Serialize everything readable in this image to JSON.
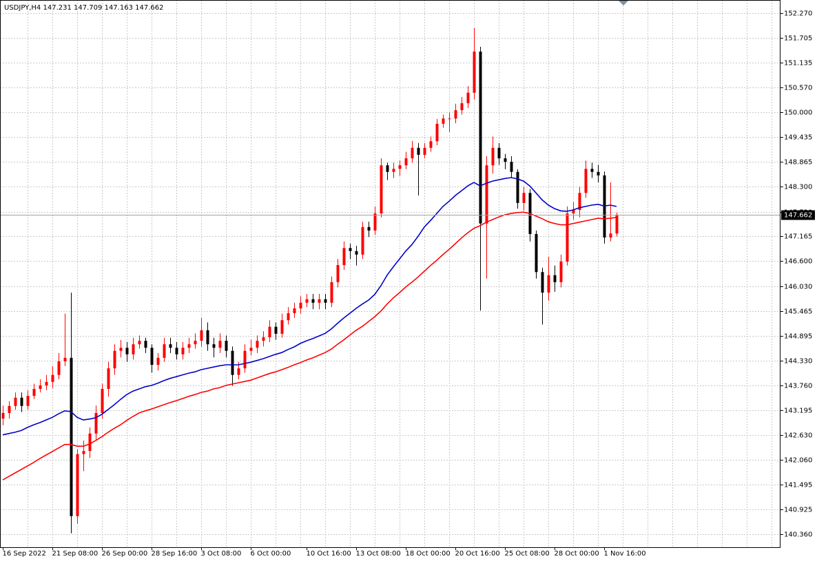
{
  "chart_data": {
    "type": "candlestick",
    "title": "USDJPY,H4",
    "categories": [
      "16 Sep 2022",
      null,
      null,
      null,
      null,
      null,
      null,
      null,
      "21 Sep 08:00",
      null,
      null,
      null,
      null,
      null,
      null,
      null,
      "26 Sep 00:00",
      null,
      null,
      null,
      null,
      null,
      null,
      null,
      "28 Sep 16:00",
      null,
      null,
      null,
      null,
      null,
      null,
      null,
      "3 Oct 08:00",
      null,
      null,
      null,
      null,
      null,
      null,
      null,
      "6 Oct 00:00",
      null,
      null,
      null,
      null,
      null,
      null,
      null,
      null,
      "10 Oct 16:00",
      null,
      null,
      null,
      null,
      null,
      null,
      null,
      "13 Oct 08:00",
      null,
      null,
      null,
      null,
      null,
      null,
      null,
      "18 Oct 00:00",
      null,
      null,
      null,
      null,
      null,
      null,
      null,
      "20 Oct 16:00",
      null,
      null,
      null,
      null,
      null,
      null,
      null,
      "25 Oct 08:00",
      null,
      null,
      null,
      null,
      null,
      null,
      null,
      "28 Oct 00:00",
      null,
      null,
      null,
      null,
      null,
      null,
      null,
      "1 Nov 16:00",
      null,
      null
    ],
    "open": [
      143.0,
      143.13,
      143.29,
      143.48,
      143.29,
      143.52,
      143.68,
      143.76,
      143.84,
      144.0,
      144.31,
      144.39,
      140.77,
      142.19,
      142.26,
      142.66,
      143.13,
      143.68,
      144.15,
      144.55,
      144.62,
      144.47,
      144.7,
      144.78,
      144.62,
      144.23,
      144.39,
      144.7,
      144.62,
      144.47,
      144.62,
      144.7,
      144.78,
      145.02,
      144.7,
      144.62,
      144.78,
      144.55,
      144.0,
      144.15,
      144.55,
      144.62,
      144.78,
      144.86,
      145.1,
      144.94,
      145.25,
      145.41,
      145.52,
      145.65,
      145.73,
      145.65,
      145.73,
      145.65,
      146.12,
      146.51,
      146.9,
      146.83,
      146.75,
      147.38,
      147.3,
      147.69,
      148.79,
      148.64,
      148.71,
      148.79,
      148.95,
      149.19,
      149.03,
      149.19,
      149.34,
      149.74,
      149.86,
      149.86,
      150.05,
      150.21,
      150.45,
      151.39,
      147.46,
      148.79,
      149.19,
      148.95,
      148.87,
      148.64,
      147.93,
      148.16,
      147.22,
      146.35,
      145.88,
      146.28,
      146.12,
      146.59,
      147.69,
      147.77,
      148.16,
      148.71,
      148.64,
      148.56,
      147.14,
      147.231
    ],
    "high": [
      143.3,
      143.4,
      143.6,
      143.6,
      143.65,
      143.8,
      143.9,
      144.0,
      144.2,
      144.5,
      145.4,
      145.88,
      142.3,
      142.5,
      142.8,
      143.3,
      143.8,
      144.3,
      144.7,
      144.8,
      144.75,
      144.85,
      144.9,
      144.85,
      144.7,
      144.5,
      144.85,
      144.85,
      144.75,
      144.75,
      144.85,
      144.95,
      145.3,
      145.2,
      144.85,
      144.95,
      144.9,
      144.65,
      144.3,
      144.7,
      144.8,
      144.9,
      145.0,
      145.25,
      145.2,
      145.4,
      145.55,
      145.65,
      145.8,
      145.85,
      145.85,
      145.85,
      145.85,
      146.25,
      146.65,
      147.05,
      147.0,
      146.95,
      147.5,
      147.5,
      147.85,
      148.95,
      148.85,
      148.85,
      148.9,
      149.1,
      149.35,
      149.3,
      149.3,
      149.45,
      149.85,
      149.95,
      150.0,
      150.2,
      150.35,
      150.6,
      151.93,
      151.5,
      149.0,
      149.45,
      149.3,
      149.05,
      149.0,
      148.7,
      148.3,
      148.25,
      147.3,
      146.45,
      146.7,
      146.5,
      146.75,
      147.85,
      147.95,
      148.3,
      148.9,
      148.85,
      148.8,
      148.65,
      148.4,
      147.709
    ],
    "low": [
      142.85,
      143.0,
      143.2,
      143.15,
      143.2,
      143.45,
      143.6,
      143.65,
      143.7,
      143.9,
      144.2,
      140.38,
      140.6,
      141.8,
      142.1,
      142.5,
      143.0,
      143.5,
      144.0,
      144.4,
      144.3,
      144.35,
      144.6,
      144.5,
      144.05,
      144.1,
      144.3,
      144.5,
      144.35,
      144.35,
      144.5,
      144.6,
      144.65,
      144.55,
      144.4,
      144.5,
      144.4,
      143.75,
      143.9,
      144.05,
      144.45,
      144.5,
      144.65,
      144.75,
      144.8,
      144.85,
      145.15,
      145.3,
      145.4,
      145.55,
      145.5,
      145.5,
      145.5,
      145.55,
      146.0,
      146.4,
      146.65,
      146.5,
      146.65,
      147.15,
      147.2,
      147.6,
      148.45,
      148.5,
      148.55,
      148.7,
      148.85,
      148.1,
      148.95,
      149.1,
      149.25,
      149.65,
      149.55,
      149.75,
      149.95,
      150.1,
      150.3,
      145.47,
      146.2,
      148.6,
      148.8,
      148.7,
      148.5,
      147.8,
      147.75,
      147.05,
      146.2,
      145.15,
      145.7,
      145.9,
      146.0,
      146.5,
      147.55,
      147.6,
      148.05,
      148.5,
      148.4,
      147.0,
      147.05,
      147.163
    ],
    "close": [
      143.13,
      143.29,
      143.48,
      143.29,
      143.52,
      143.68,
      143.76,
      143.84,
      144.0,
      144.31,
      144.39,
      140.77,
      142.19,
      142.26,
      142.66,
      143.13,
      143.68,
      144.15,
      144.55,
      144.62,
      144.47,
      144.7,
      144.78,
      144.62,
      144.23,
      144.39,
      144.7,
      144.62,
      144.47,
      144.62,
      144.7,
      144.78,
      145.02,
      144.7,
      144.62,
      144.78,
      144.55,
      144.0,
      144.15,
      144.55,
      144.62,
      144.78,
      144.86,
      145.1,
      144.94,
      145.25,
      145.41,
      145.52,
      145.65,
      145.73,
      145.65,
      145.73,
      145.65,
      146.12,
      146.51,
      146.9,
      146.83,
      146.75,
      147.38,
      147.3,
      147.69,
      148.79,
      148.64,
      148.71,
      148.79,
      148.95,
      149.19,
      149.03,
      149.19,
      149.34,
      149.74,
      149.86,
      149.86,
      150.05,
      150.21,
      150.45,
      151.39,
      147.46,
      148.79,
      149.19,
      148.95,
      148.87,
      148.64,
      147.93,
      148.16,
      147.22,
      146.35,
      145.88,
      146.28,
      146.12,
      146.59,
      147.69,
      147.77,
      148.16,
      148.71,
      148.64,
      148.56,
      147.14,
      147.231,
      147.662
    ],
    "up_color": "#ff0000",
    "down_color": "#000000",
    "series": [
      {
        "color": "#0000c8",
        "values": [
          142.63,
          142.66,
          142.69,
          142.73,
          142.8,
          142.86,
          142.91,
          142.97,
          143.03,
          143.11,
          143.18,
          143.16,
          143.03,
          142.97,
          142.99,
          143.02,
          143.1,
          143.21,
          143.32,
          143.44,
          143.55,
          143.63,
          143.68,
          143.73,
          143.76,
          143.81,
          143.87,
          143.92,
          143.96,
          144.0,
          144.04,
          144.07,
          144.12,
          144.15,
          144.18,
          144.21,
          144.23,
          144.23,
          144.23,
          144.26,
          144.29,
          144.33,
          144.37,
          144.42,
          144.47,
          144.51,
          144.58,
          144.64,
          144.72,
          144.78,
          144.83,
          144.89,
          144.95,
          145.05,
          145.18,
          145.3,
          145.41,
          145.52,
          145.62,
          145.71,
          145.84,
          146.04,
          146.28,
          146.47,
          146.65,
          146.83,
          146.98,
          147.17,
          147.38,
          147.53,
          147.69,
          147.85,
          147.97,
          148.1,
          148.21,
          148.32,
          148.4,
          148.32,
          148.38,
          148.43,
          148.46,
          148.49,
          148.51,
          148.48,
          148.43,
          148.32,
          148.16,
          148.0,
          147.88,
          147.8,
          147.75,
          147.74,
          147.77,
          147.82,
          147.85,
          147.88,
          147.9,
          147.86,
          147.88,
          147.85
        ]
      },
      {
        "color": "#ff0000",
        "values": [
          141.6,
          141.68,
          141.76,
          141.84,
          141.92,
          142.0,
          142.09,
          142.17,
          142.25,
          142.33,
          142.41,
          142.41,
          142.37,
          142.37,
          142.42,
          142.5,
          142.59,
          142.69,
          142.78,
          142.86,
          142.96,
          143.05,
          143.13,
          143.18,
          143.22,
          143.27,
          143.32,
          143.37,
          143.41,
          143.46,
          143.51,
          143.55,
          143.6,
          143.63,
          143.68,
          143.71,
          143.76,
          143.79,
          143.82,
          143.85,
          143.88,
          143.93,
          143.98,
          144.03,
          144.07,
          144.12,
          144.17,
          144.23,
          144.28,
          144.34,
          144.39,
          144.45,
          144.51,
          144.59,
          144.7,
          144.8,
          144.91,
          145.02,
          145.11,
          145.22,
          145.33,
          145.46,
          145.62,
          145.76,
          145.88,
          146.01,
          146.12,
          146.24,
          146.37,
          146.5,
          146.62,
          146.75,
          146.87,
          147.0,
          147.13,
          147.25,
          147.35,
          147.41,
          147.49,
          147.55,
          147.61,
          147.66,
          147.69,
          147.71,
          147.72,
          147.69,
          147.63,
          147.57,
          147.5,
          147.46,
          147.43,
          147.43,
          147.46,
          147.49,
          147.52,
          147.55,
          147.58,
          147.57,
          147.58,
          147.6
        ]
      }
    ],
    "ylim": [
      140.061,
      152.569
    ],
    "yticks": [
      {
        "value": 152.27,
        "label": "152.270"
      },
      {
        "value": 151.705,
        "label": "151.705"
      },
      {
        "value": 151.135,
        "label": "151.135"
      },
      {
        "value": 150.57,
        "label": "150.570"
      },
      {
        "value": 150.0,
        "label": "150.000"
      },
      {
        "value": 149.435,
        "label": "149.435"
      },
      {
        "value": 148.865,
        "label": "148.865"
      },
      {
        "value": 148.3,
        "label": "148.300"
      },
      {
        "value": 147.73,
        "label": "147.730"
      },
      {
        "value": 147.165,
        "label": "147.165"
      },
      {
        "value": 146.6,
        "label": "146.600"
      },
      {
        "value": 146.03,
        "label": "146.030"
      },
      {
        "value": 145.465,
        "label": "145.465"
      },
      {
        "value": 144.895,
        "label": "144.895"
      },
      {
        "value": 144.33,
        "label": "144.330"
      },
      {
        "value": 143.76,
        "label": "143.760"
      },
      {
        "value": 143.195,
        "label": "143.195"
      },
      {
        "value": 142.63,
        "label": "142.630"
      },
      {
        "value": 142.06,
        "label": "142.060"
      },
      {
        "value": 141.495,
        "label": "141.495"
      },
      {
        "value": 140.925,
        "label": "140.925"
      },
      {
        "value": 140.36,
        "label": "140.360"
      }
    ],
    "grid": true
  }
}
